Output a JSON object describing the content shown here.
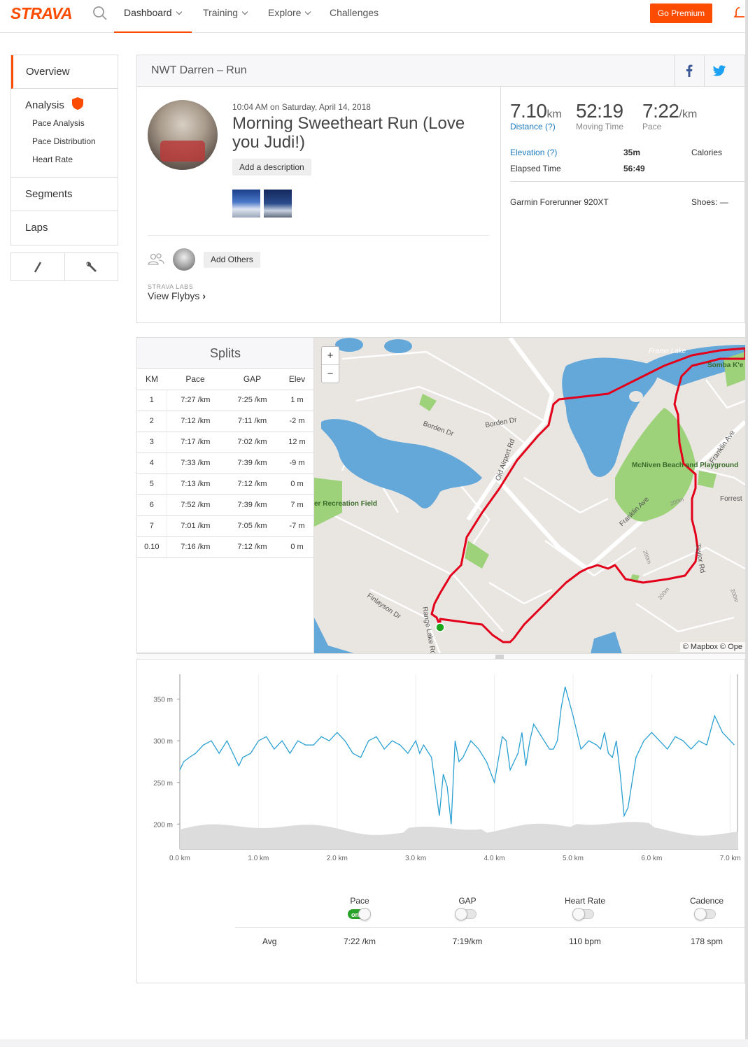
{
  "nav": {
    "logo": "STRAVA",
    "dashboard": "Dashboard",
    "training": "Training",
    "explore": "Explore",
    "challenges": "Challenges",
    "premium": "Go Premium"
  },
  "sidebar": {
    "overview": "Overview",
    "analysis": "Analysis",
    "sub": [
      "Pace Analysis",
      "Pace Distribution",
      "Heart Rate"
    ],
    "segments": "Segments",
    "laps": "Laps"
  },
  "activity": {
    "header": "NWT Darren – Run",
    "date": "10:04 AM on Saturday, April 14, 2018",
    "title": "Morning Sweetheart Run (Love you Judi!)",
    "add_description": "Add a description",
    "add_others": "Add Others",
    "labs": "STRAVA LABS",
    "flybys": "View Flybys"
  },
  "stats": {
    "distance": {
      "value": "7.10",
      "unit": "km",
      "label": "Distance (?)"
    },
    "moving_time": {
      "value": "52:19",
      "label": "Moving Time"
    },
    "pace": {
      "value": "7:22",
      "unit": "/km",
      "label": "Pace"
    },
    "elevation_label": "Elevation (?)",
    "elevation": "35m",
    "calories_label": "Calories",
    "elapsed_label": "Elapsed Time",
    "elapsed": "56:49",
    "device": "Garmin Forerunner 920XT",
    "shoes": "Shoes: —"
  },
  "splits": {
    "title": "Splits",
    "headers": [
      "KM",
      "Pace",
      "GAP",
      "Elev"
    ],
    "rows": [
      [
        "1",
        "7:27 /km",
        "7:25 /km",
        "1 m"
      ],
      [
        "2",
        "7:12 /km",
        "7:11 /km",
        "-2 m"
      ],
      [
        "3",
        "7:17 /km",
        "7:02 /km",
        "12 m"
      ],
      [
        "4",
        "7:33 /km",
        "7:39 /km",
        "-9 m"
      ],
      [
        "5",
        "7:13 /km",
        "7:12 /km",
        "0 m"
      ],
      [
        "6",
        "7:52 /km",
        "7:39 /km",
        "7 m"
      ],
      [
        "7",
        "7:01 /km",
        "7:05 /km",
        "-7 m"
      ],
      [
        "0.10",
        "7:16 /km",
        "7:12 /km",
        "0 m"
      ]
    ]
  },
  "map": {
    "labels": [
      "Borden Dr",
      "Borden Dr",
      "Old Airport Rd",
      "Franklin Ave",
      "Franklin Ave",
      "McNiven Beach and Playground",
      "er Recreation Field",
      "Finlayson Dr",
      "Range Lake Rd",
      "Frame Lake",
      "Somba K'e Park",
      "Forrest",
      "Taylor Rd",
      "200m",
      "200m",
      "200m",
      "200m"
    ],
    "zoom_in": "+",
    "zoom_out": "−",
    "attribution": "© Mapbox © Ope"
  },
  "chart_data": {
    "type": "line",
    "title": "",
    "xlabel": "",
    "ylabel": "",
    "x_ticks": [
      "0.0 km",
      "1.0 km",
      "2.0 km",
      "3.0 km",
      "4.0 km",
      "5.0 km",
      "6.0 km",
      "7.0 km"
    ],
    "y_ticks": [
      "350 m",
      "300 m",
      "250 m",
      "200 m"
    ],
    "xlim": [
      0,
      7.1
    ],
    "ylim": [
      170,
      380
    ],
    "series": [
      {
        "x": [
          0,
          0.05,
          0.12,
          0.2,
          0.3,
          0.4,
          0.5,
          0.6,
          0.7,
          0.75,
          0.8,
          0.9,
          1.0,
          1.1,
          1.2,
          1.3,
          1.4,
          1.5,
          1.6,
          1.7,
          1.8,
          1.9,
          2.0,
          2.1,
          2.2,
          2.3,
          2.4,
          2.5,
          2.6,
          2.7,
          2.8,
          2.9,
          3.0,
          3.05,
          3.1,
          3.2,
          3.25,
          3.3,
          3.35,
          3.4,
          3.45,
          3.5,
          3.55,
          3.6,
          3.7,
          3.8,
          3.9,
          4.0,
          4.1,
          4.15,
          4.2,
          4.3,
          4.35,
          4.4,
          4.45,
          4.5,
          4.6,
          4.7,
          4.75,
          4.8,
          4.85,
          4.9,
          5.0,
          5.1,
          5.2,
          5.3,
          5.35,
          5.4,
          5.45,
          5.5,
          5.55,
          5.6,
          5.65,
          5.7,
          5.8,
          5.9,
          6.0,
          6.1,
          6.2,
          6.3,
          6.4,
          6.5,
          6.6,
          6.7,
          6.8,
          6.9,
          7.0,
          7.05
        ],
        "y": [
          265,
          275,
          280,
          285,
          295,
          300,
          285,
          300,
          280,
          270,
          280,
          285,
          300,
          305,
          290,
          300,
          285,
          300,
          295,
          295,
          305,
          300,
          310,
          300,
          285,
          280,
          300,
          305,
          290,
          300,
          295,
          285,
          300,
          285,
          295,
          280,
          245,
          210,
          260,
          245,
          200,
          300,
          275,
          280,
          300,
          290,
          275,
          250,
          305,
          300,
          265,
          285,
          310,
          270,
          300,
          320,
          305,
          290,
          290,
          300,
          340,
          365,
          330,
          290,
          300,
          295,
          290,
          310,
          285,
          280,
          300,
          260,
          210,
          220,
          280,
          300,
          310,
          300,
          290,
          305,
          300,
          290,
          300,
          295,
          330,
          310,
          300,
          295
        ]
      }
    ]
  },
  "toggles": {
    "items": [
      "Pace",
      "GAP",
      "Heart Rate",
      "Cadence"
    ],
    "on_label": "on",
    "avg_label": "Avg",
    "avgs": [
      "7:22 /km",
      "7:19/km",
      "110 bpm",
      "178 spm"
    ]
  },
  "colors": {
    "accent": "#fc4c02",
    "line": "#2aa0d2",
    "route": "#e2001a",
    "water": "#64a7d9",
    "park": "#9dd27a",
    "land": "#e9e6e2"
  }
}
